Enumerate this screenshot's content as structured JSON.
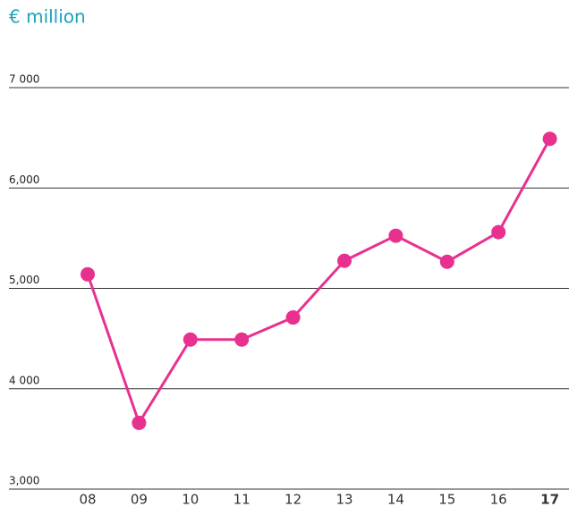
{
  "chart_data": {
    "type": "line",
    "subtitle": "€ million",
    "categories": [
      "08",
      "09",
      "10",
      "11",
      "12",
      "13",
      "14",
      "15",
      "16",
      "17"
    ],
    "series": [
      {
        "color": "#e8318f",
        "values": [
          5140,
          3660,
          4490,
          4490,
          4710,
          5275,
          5525,
          5265,
          5560,
          6490
        ]
      }
    ],
    "ylim": [
      3000,
      7000
    ],
    "yticks": [
      {
        "value": 3000,
        "label": "3,000"
      },
      {
        "value": 4000,
        "label": "4 000"
      },
      {
        "value": 5000,
        "label": "5,000"
      },
      {
        "value": 6000,
        "label": "6,000"
      },
      {
        "value": 7000,
        "label": "7 000"
      }
    ],
    "grid": true,
    "accent_color": "#1aa3b8"
  }
}
